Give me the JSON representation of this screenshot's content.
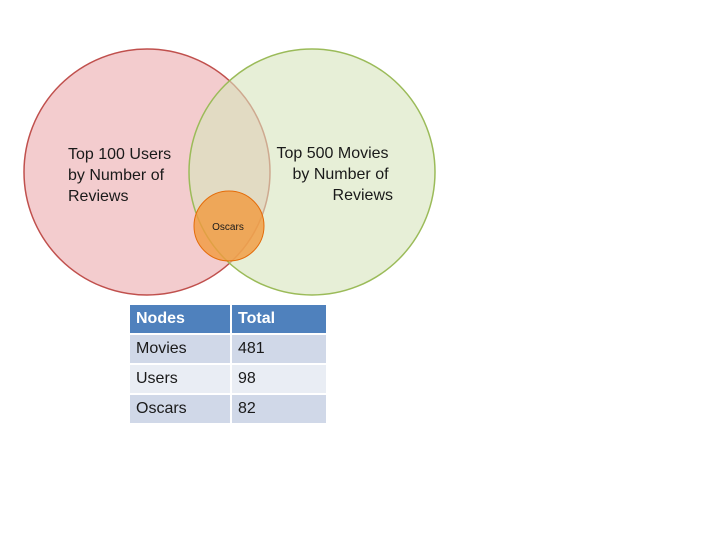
{
  "venn": {
    "sets": [
      {
        "id": "users",
        "label_lines": [
          "Top 100 Users",
          "by Number of",
          "Reviews"
        ],
        "fill": "#e9a3a5",
        "stroke": "#c0504d"
      },
      {
        "id": "movies",
        "label_lines": [
          "Top 500  Movies",
          "by Number of",
          "Reviews"
        ],
        "fill": "#d7e4bd",
        "stroke": "#9bbb59"
      },
      {
        "id": "oscars",
        "label": "Oscars",
        "fill": "#f19a3e",
        "stroke": "#e46c0a"
      }
    ]
  },
  "table": {
    "headers": [
      "Nodes",
      "Total"
    ],
    "rows": [
      {
        "node": "Movies",
        "total": "481"
      },
      {
        "node": "Users",
        "total": "98"
      },
      {
        "node": "Oscars",
        "total": "82"
      }
    ],
    "colors": {
      "header": "#4f81bd",
      "band_dark": "#d0d8e8",
      "band_light": "#e9edf4"
    }
  }
}
